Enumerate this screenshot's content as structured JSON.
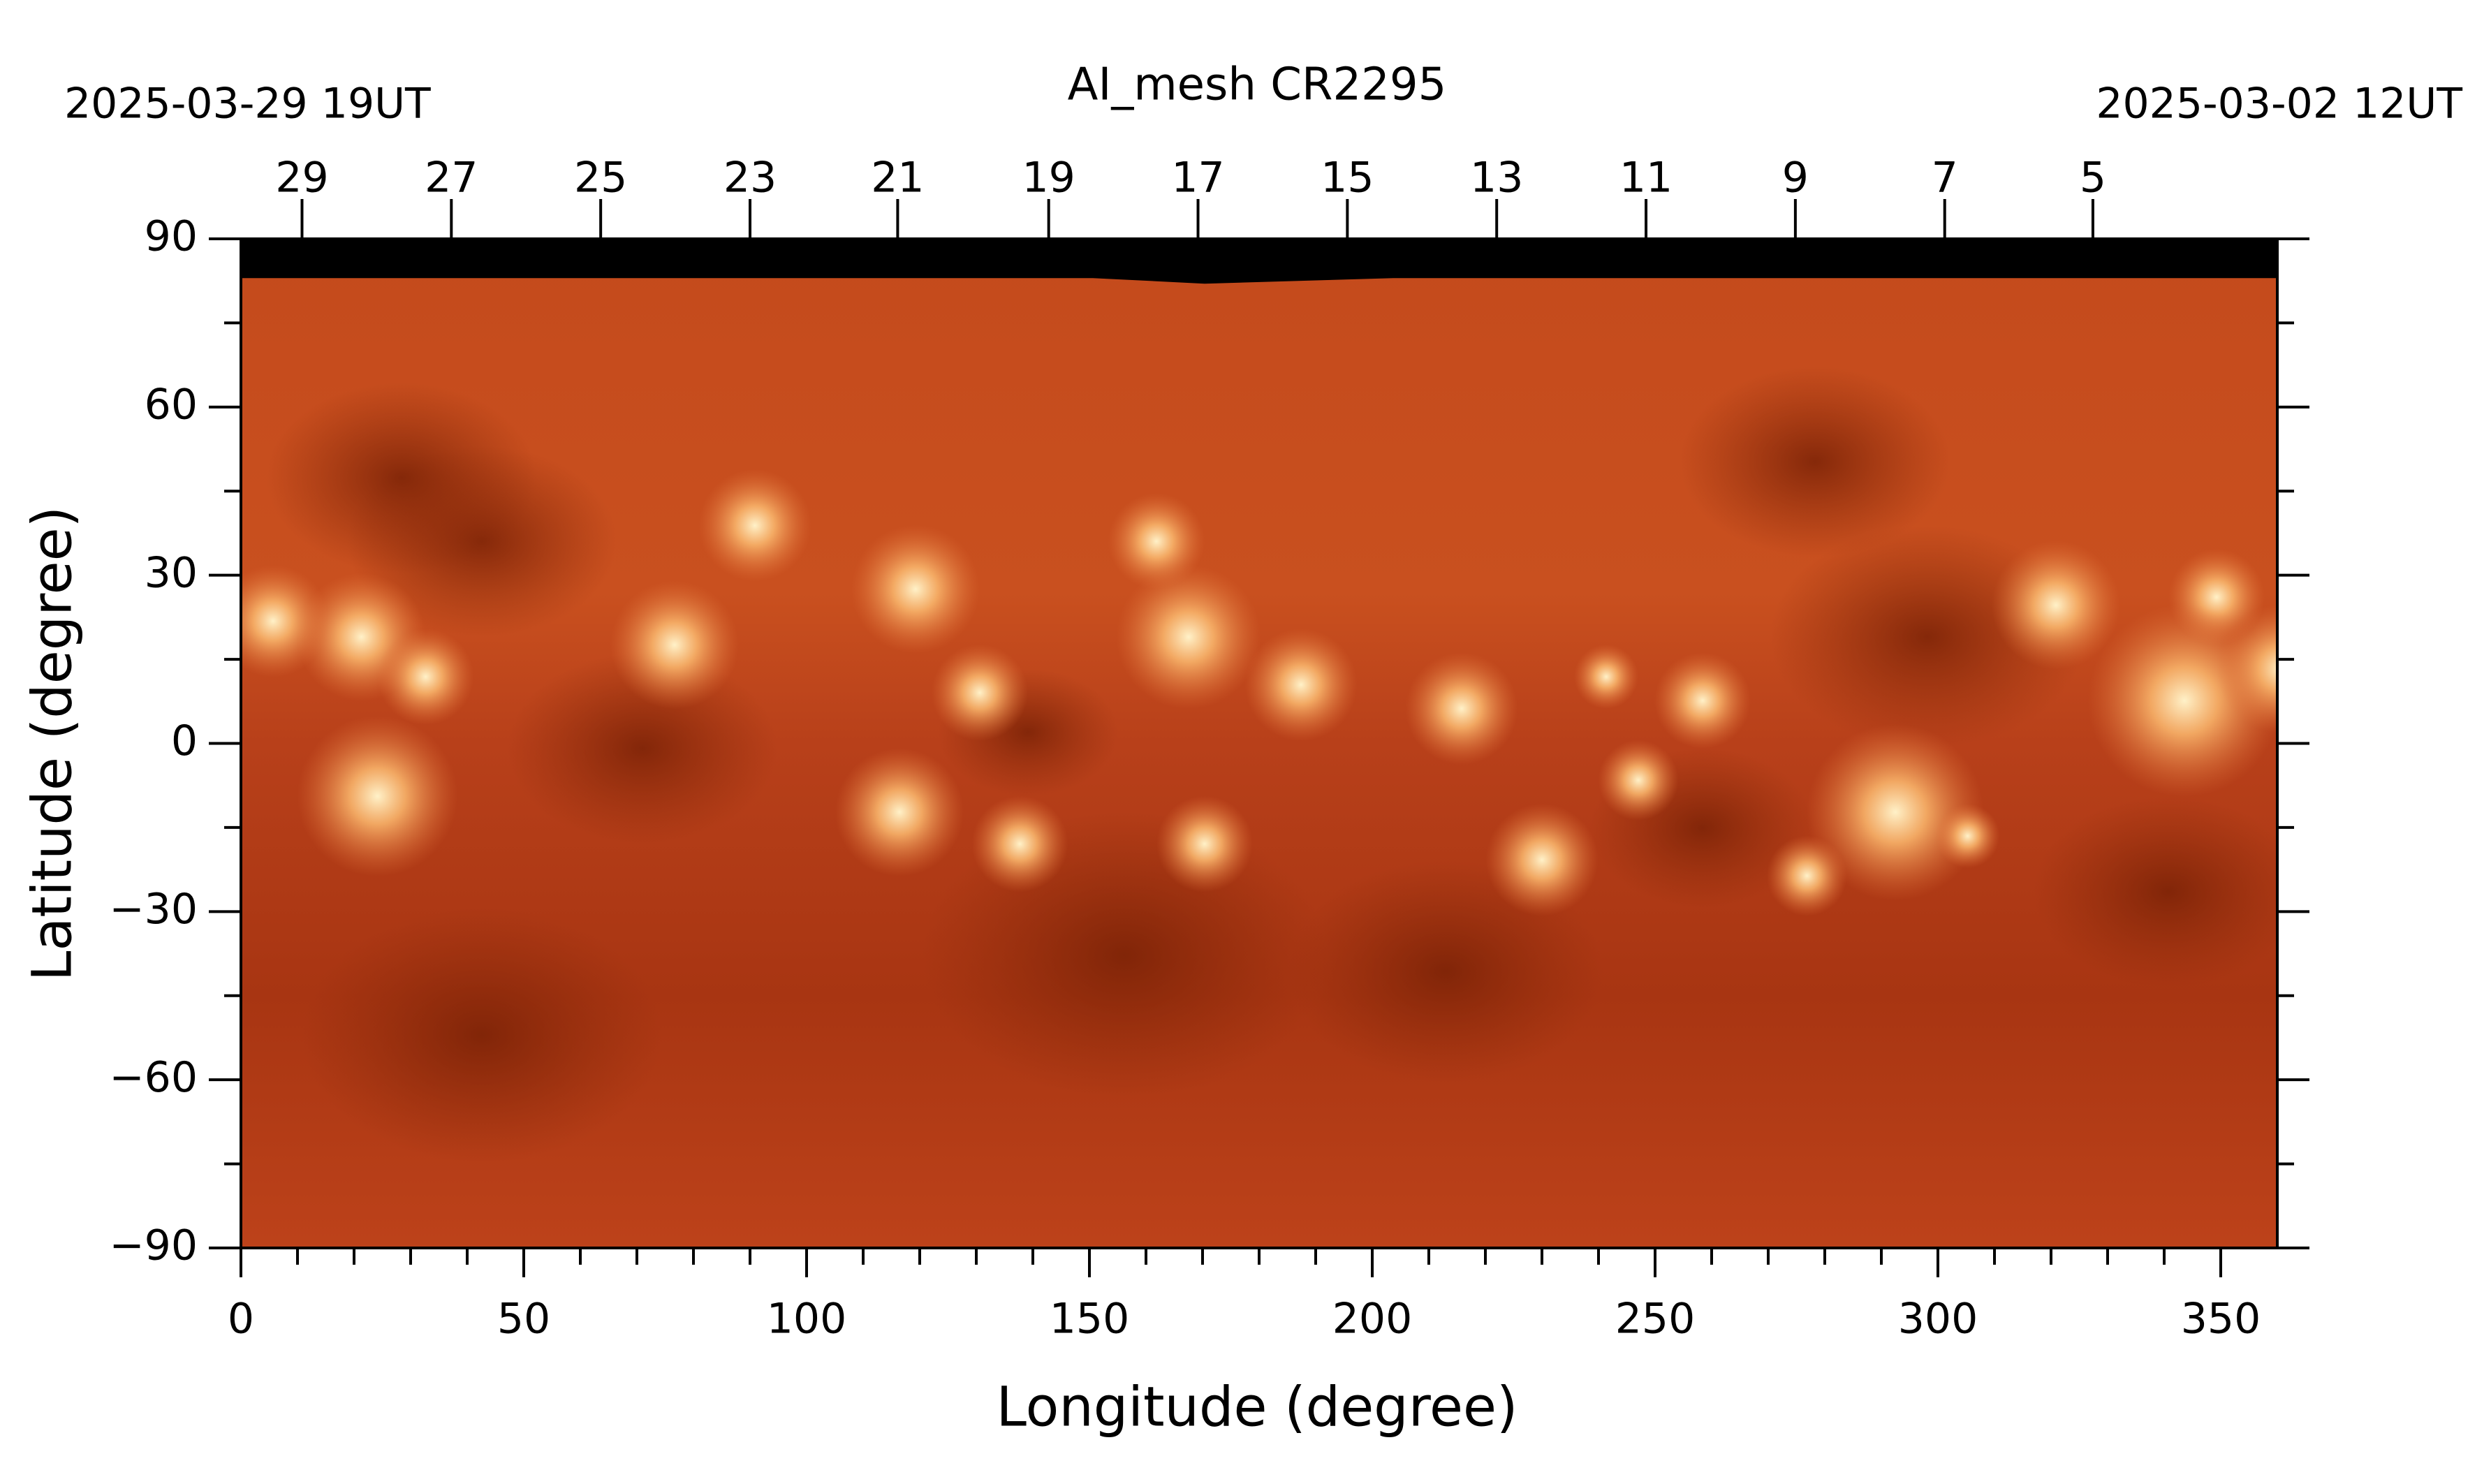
{
  "chart_data": {
    "type": "image",
    "title": "AI_mesh   CR2295",
    "start_label": "2025-03-29  19UT",
    "end_label": "2025-03-02  12UT",
    "xlabel": "Longitude (degree)",
    "ylabel": "Latitude (degree)",
    "xlim": [
      0,
      360
    ],
    "ylim": [
      -90,
      90
    ],
    "xticks": [
      0,
      50,
      100,
      150,
      200,
      250,
      300,
      350
    ],
    "yticks": [
      {
        "value": -90,
        "label": "−90"
      },
      {
        "value": -60,
        "label": "−60"
      },
      {
        "value": -30,
        "label": "−30"
      },
      0,
      30,
      60,
      90
    ],
    "xminorticks": [
      10,
      20,
      30,
      40,
      60,
      70,
      80,
      90,
      110,
      120,
      130,
      140,
      160,
      170,
      180,
      190,
      210,
      220,
      230,
      240,
      260,
      270,
      280,
      290,
      310,
      320,
      330,
      340
    ],
    "yminorticks": [
      -75,
      -45,
      -15,
      15,
      45,
      75
    ],
    "top_ticks": [
      {
        "value": 10.8,
        "label": "29"
      },
      {
        "value": 37.2,
        "label": "27"
      },
      {
        "value": 63.6,
        "label": "25"
      },
      {
        "value": 90,
        "label": "23"
      },
      {
        "value": 116.1,
        "label": "21"
      },
      {
        "value": 142.8,
        "label": "19"
      },
      {
        "value": 169.2,
        "label": "17"
      },
      {
        "value": 195.6,
        "label": "15"
      },
      {
        "value": 222,
        "label": "13"
      },
      {
        "value": 248.4,
        "label": "11"
      },
      {
        "value": 274.8,
        "label": "9"
      },
      {
        "value": 301.2,
        "label": "7"
      },
      {
        "value": 327.4,
        "label": "5"
      }
    ]
  }
}
